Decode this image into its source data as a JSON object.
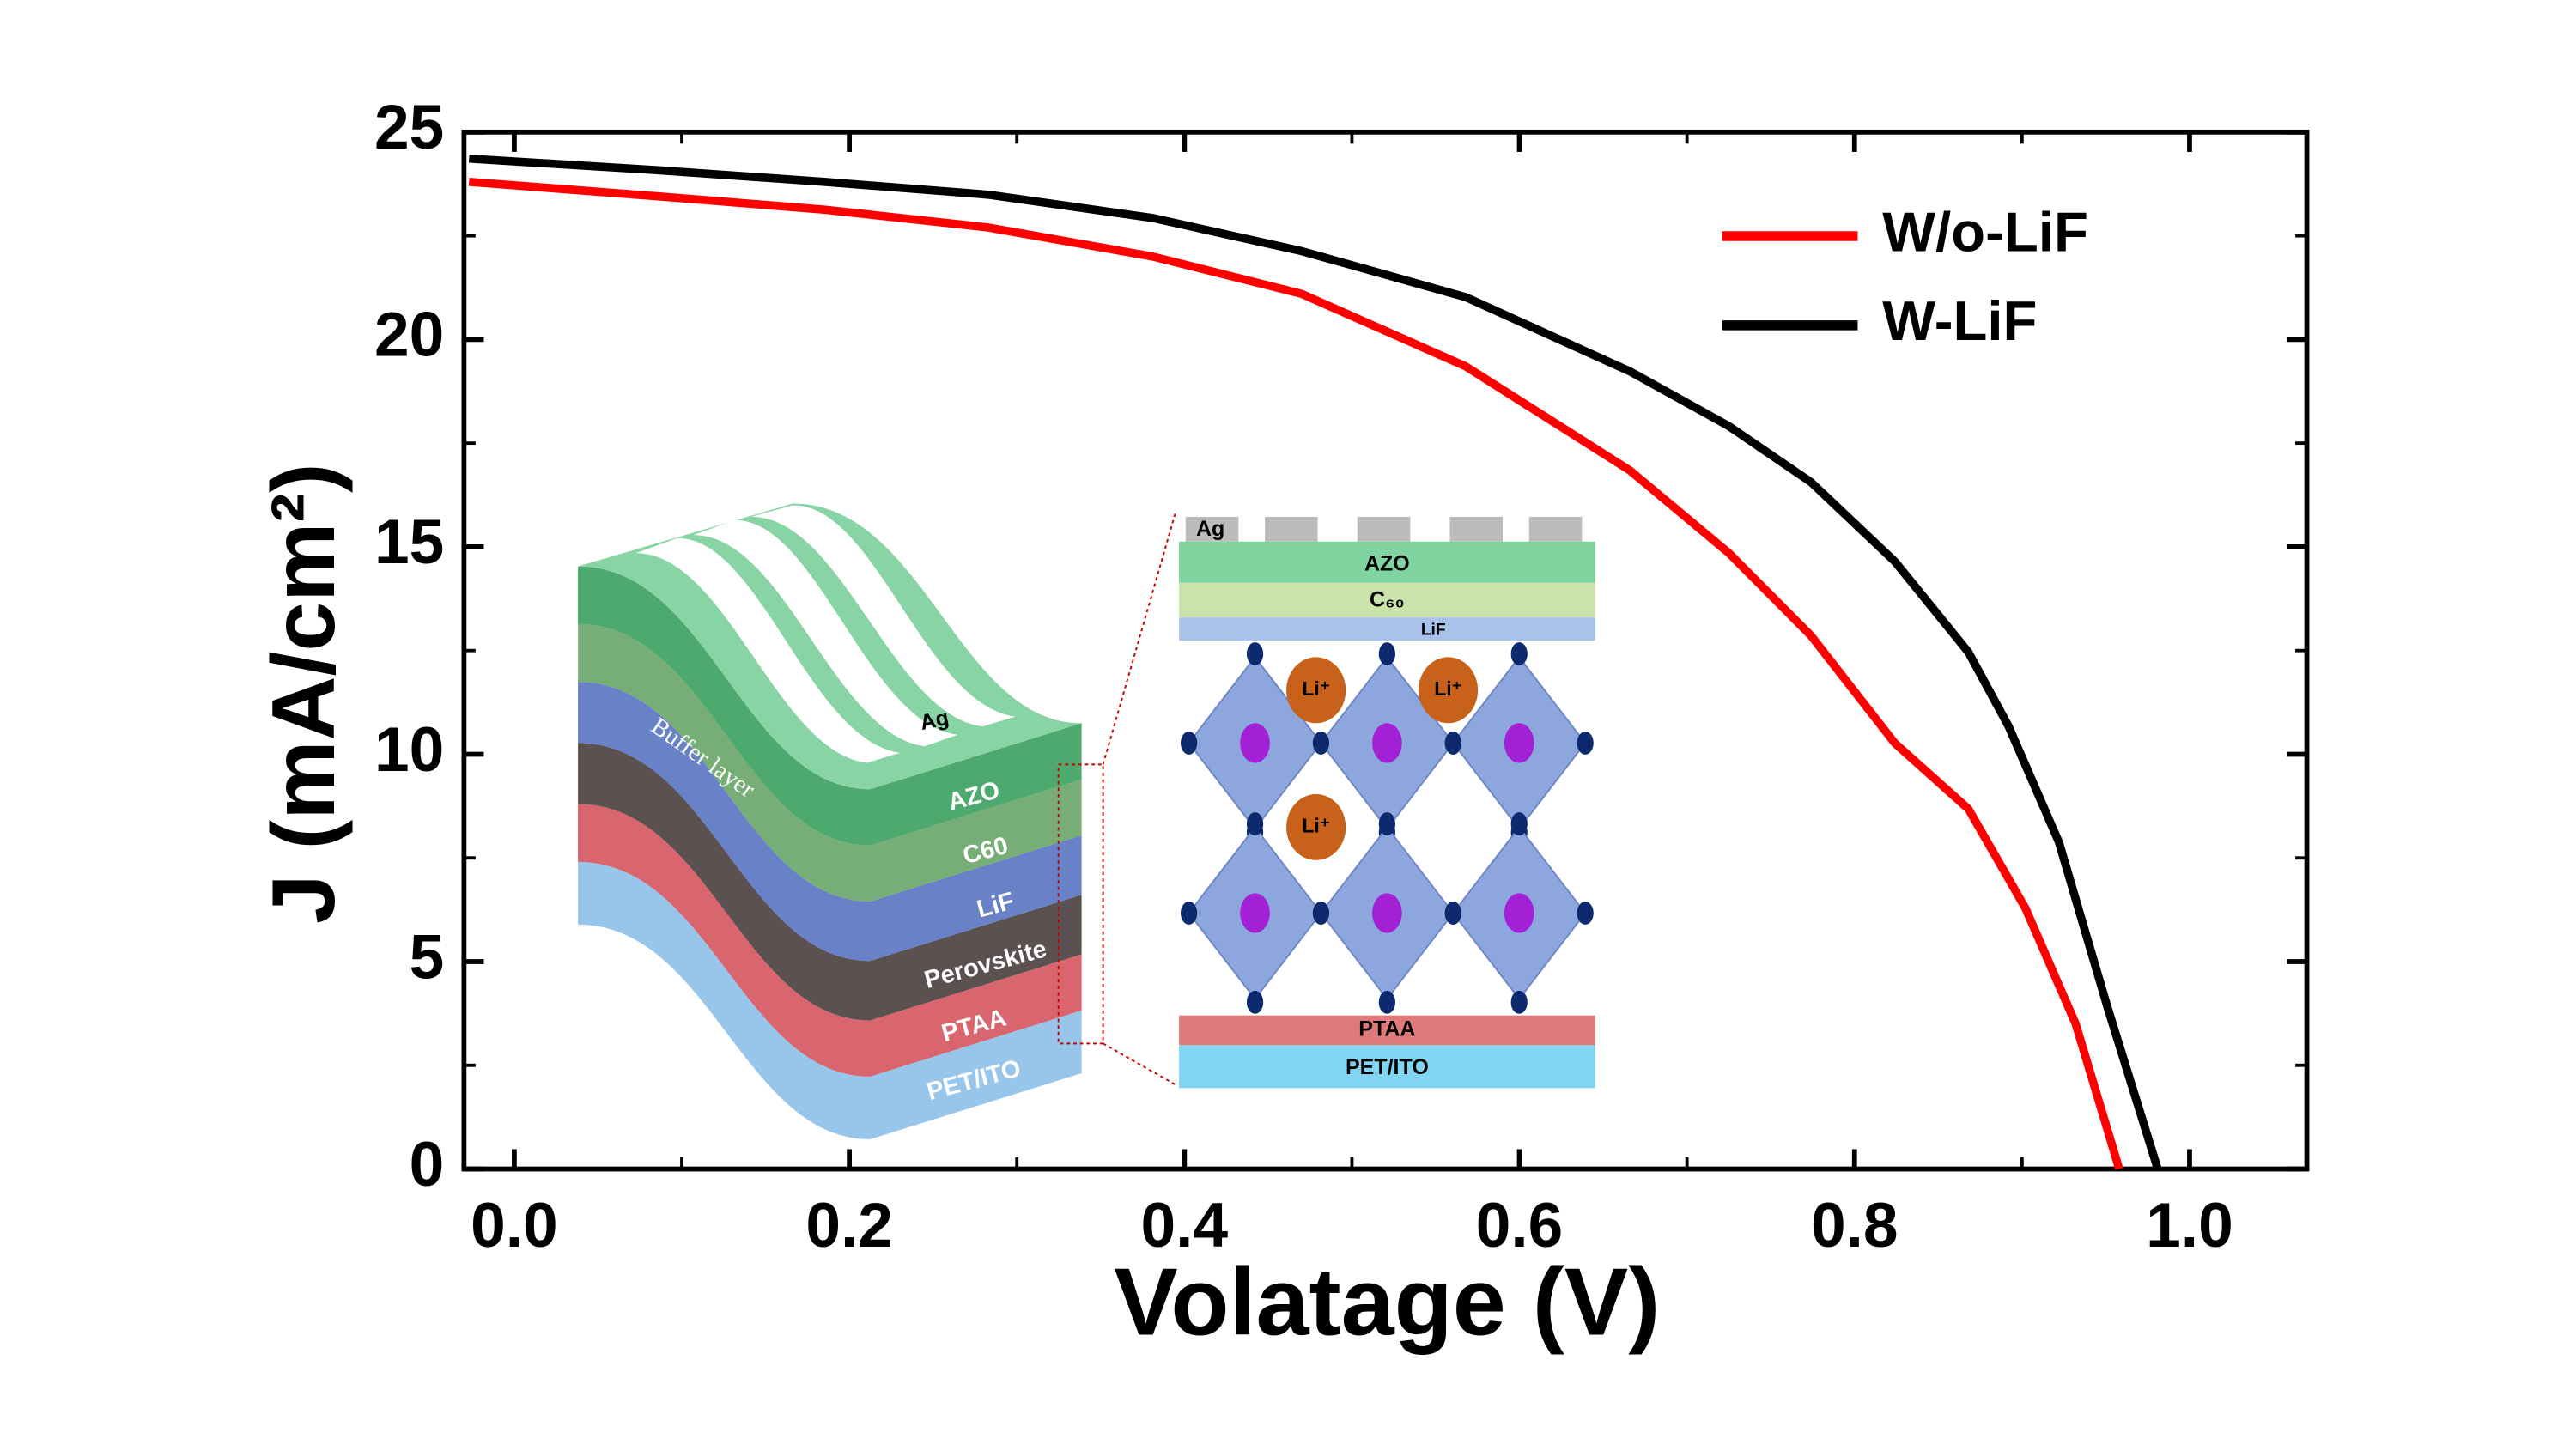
{
  "chart_data": {
    "type": "line",
    "xlabel": "Volatage (V)",
    "ylabel": "J (mA/cm²)",
    "xlim": [
      -0.03,
      1.07
    ],
    "ylim": [
      0,
      25
    ],
    "xticks": [
      {
        "value": 0,
        "label": "0.0"
      },
      {
        "value": 0.2,
        "label": "0.2"
      },
      {
        "value": 0.4,
        "label": "0.4"
      },
      {
        "value": 0.6,
        "label": "0.6"
      },
      {
        "value": 0.8,
        "label": "0.8"
      },
      {
        "value": 1,
        "label": "1.0"
      }
    ],
    "yticks": [
      0,
      5,
      10,
      15,
      20,
      25
    ],
    "minor_xticks": [
      0.1,
      0.3,
      0.5,
      0.7,
      0.9
    ],
    "minor_yticks": [
      2.5,
      7.5,
      12.5,
      17.5,
      22.5
    ],
    "legend": "upper right",
    "series": [
      {
        "name": "W/o-LiF",
        "color": "#ff0000",
        "x": [
          -0.027,
          0.086,
          0.185,
          0.283,
          0.381,
          0.47,
          0.568,
          0.666,
          0.725,
          0.774,
          0.824,
          0.868,
          0.902,
          0.932,
          0.958
        ],
        "values": [
          23.8,
          23.45,
          23.13,
          22.7,
          22.0,
          21.1,
          19.35,
          16.84,
          14.85,
          12.86,
          10.27,
          8.68,
          6.29,
          3.5,
          0
        ]
      },
      {
        "name": "W-LiF",
        "color": "#000000",
        "x": [
          -0.027,
          0.086,
          0.185,
          0.283,
          0.381,
          0.47,
          0.568,
          0.666,
          0.725,
          0.774,
          0.824,
          0.868,
          0.892,
          0.922,
          0.951,
          0.981
        ],
        "values": [
          24.36,
          24.08,
          23.8,
          23.49,
          22.93,
          22.13,
          21.02,
          19.23,
          17.91,
          16.56,
          14.65,
          12.46,
          10.67,
          7.88,
          3.9,
          0
        ]
      }
    ]
  },
  "insets": {
    "device_stack": {
      "top": "Ag",
      "layers": [
        "AZO",
        "C60",
        "LiF",
        "Perovskite",
        "PTAA",
        "PET/ITO"
      ],
      "side": "Buffer layer"
    },
    "cross_section": {
      "electrode": "Ag",
      "layers": [
        "AZO",
        "C₆₀",
        "LiF"
      ],
      "ions": [
        "Li⁺",
        "Li⁺",
        "Li⁺"
      ],
      "bottom": [
        "PTAA",
        "PET/ITO"
      ]
    }
  }
}
